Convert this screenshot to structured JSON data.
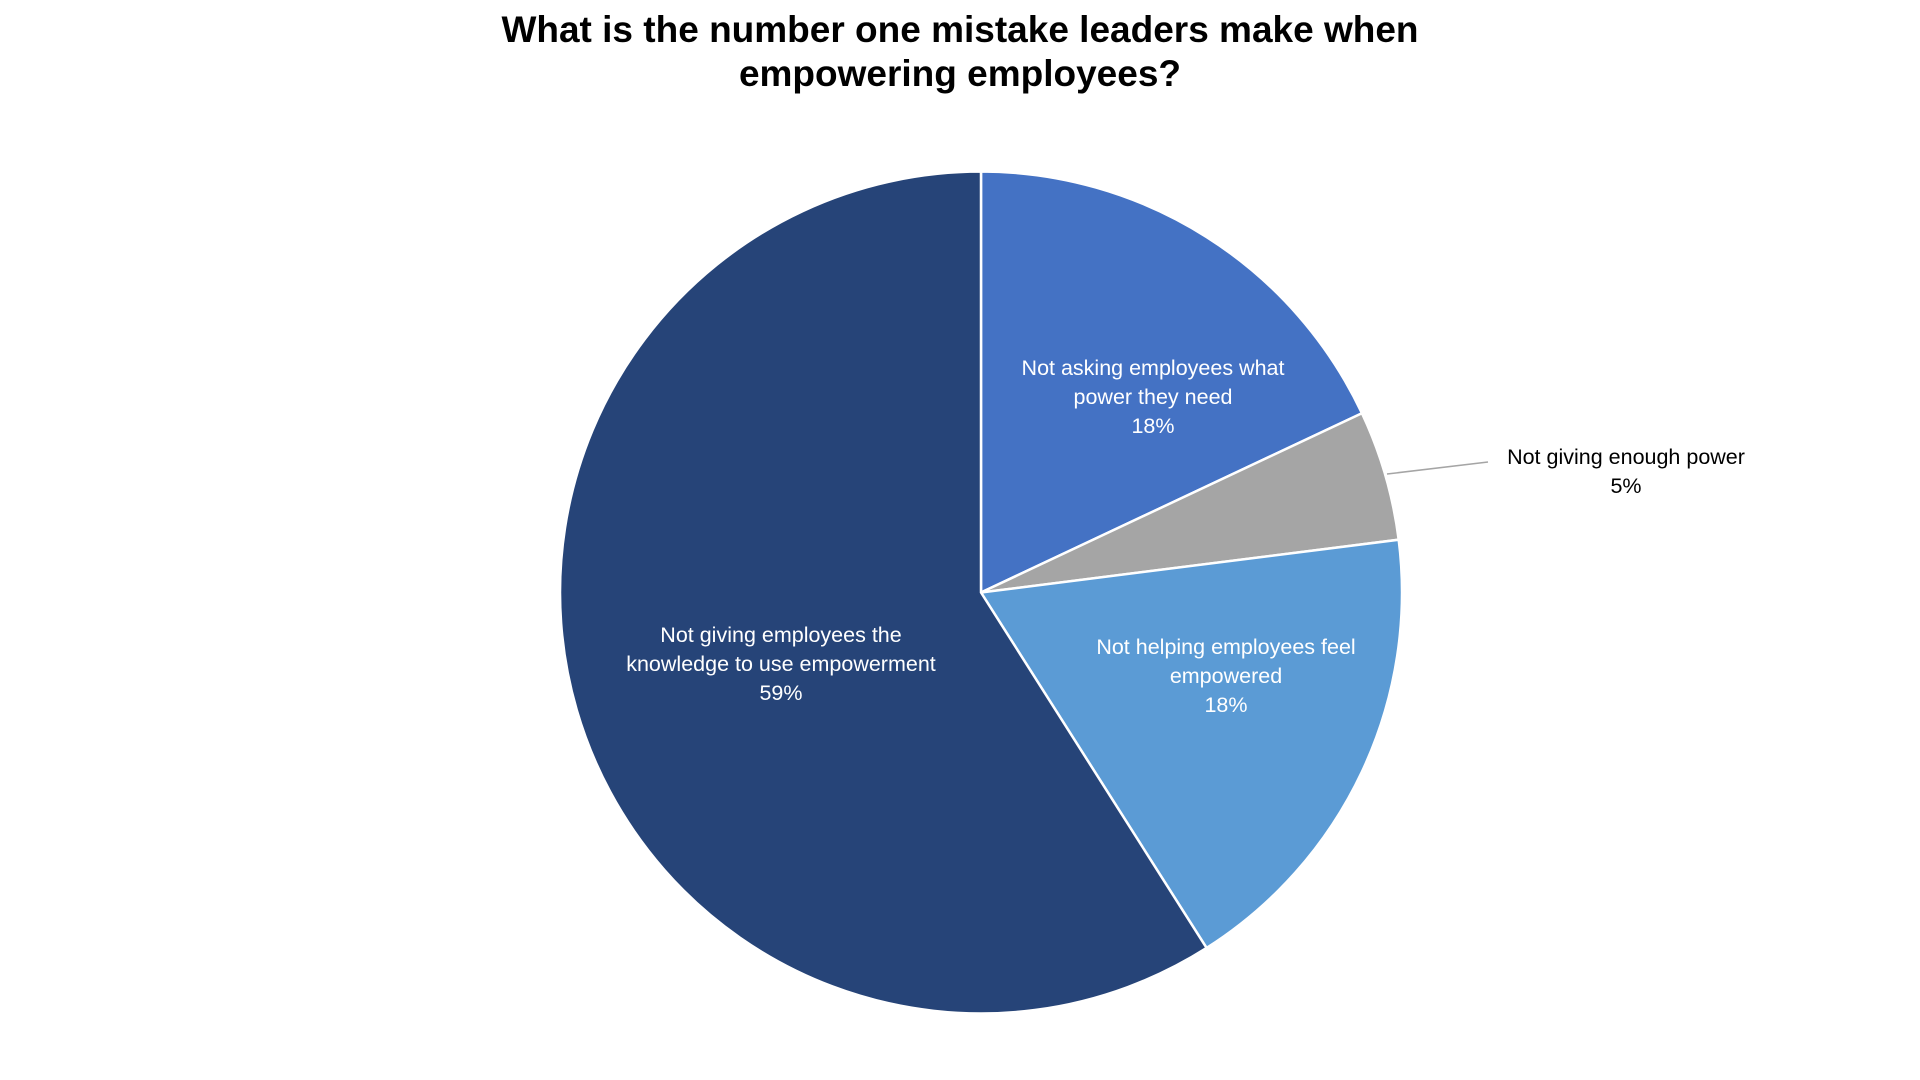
{
  "chart_data": {
    "type": "pie",
    "title": "What is the number one mistake leaders make when empowering employees?",
    "title_lines": [
      "What is the number one mistake leaders make when",
      "empowering employees?"
    ],
    "start_angle_deg": 0,
    "direction": "clockwise",
    "slices": [
      {
        "label": "Not asking employees what power they need",
        "label_lines": [
          "Not asking employees what",
          "power they need"
        ],
        "value": 18,
        "display": "18%",
        "color": "#4472C4",
        "label_position": "inside"
      },
      {
        "label": "Not giving enough power",
        "label_lines": [
          "Not giving enough power"
        ],
        "value": 5,
        "display": "5%",
        "color": "#A5A5A5",
        "label_position": "outside",
        "leader_line": true
      },
      {
        "label": "Not helping employees feel empowered",
        "label_lines": [
          "Not helping employees feel",
          "empowered"
        ],
        "value": 18,
        "display": "18%",
        "color": "#5B9BD5",
        "label_position": "inside"
      },
      {
        "label": "Not giving employees the knowledge to use empowerment",
        "label_lines": [
          "Not giving employees the",
          "knowledge to use empowerment"
        ],
        "value": 59,
        "display": "59%",
        "color": "#264478",
        "label_position": "inside"
      }
    ],
    "legend": null
  },
  "colors": {
    "slice_border": "#ffffff",
    "leader_line": "#A5A5A5",
    "inside_text": "#ffffff",
    "outside_text": "#000000"
  }
}
